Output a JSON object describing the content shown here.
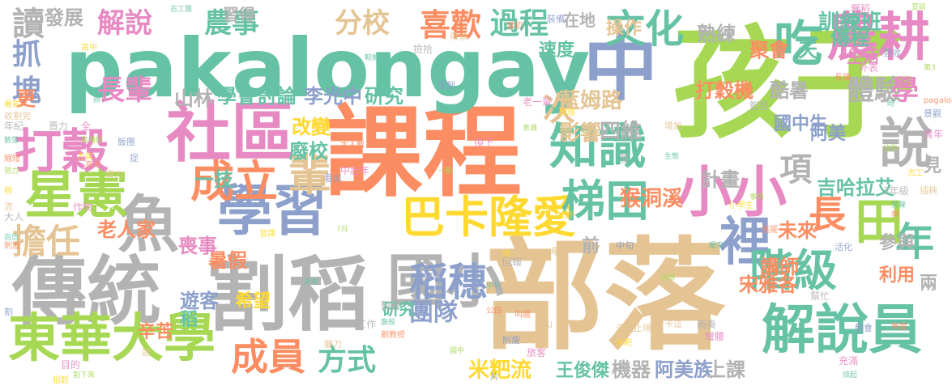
{
  "palette": {
    "green": "#66c2a5",
    "orange": "#fc8d62",
    "blue": "#8da0cb",
    "pink": "#e78ac3",
    "lime": "#a6d854",
    "yellow": "#ffd92f",
    "tan": "#e5c494",
    "gray": "#b3b3b3"
  },
  "words": [
    {
      "text": "課程",
      "color": "orange"
    },
    {
      "text": "部落",
      "color": "tan"
    },
    {
      "text": "孩子",
      "color": "lime"
    },
    {
      "text": "pakalongay",
      "color": "green"
    },
    {
      "text": "割稻",
      "color": "gray"
    },
    {
      "text": "傳統",
      "color": "gray"
    },
    {
      "text": "中",
      "color": "blue"
    },
    {
      "text": "社區",
      "color": "pink"
    },
    {
      "text": "學習",
      "color": "blue"
    },
    {
      "text": "魚",
      "color": "gray"
    },
    {
      "text": "東華大學",
      "color": "lime"
    },
    {
      "text": "國小",
      "color": "gray"
    },
    {
      "text": "星憲",
      "color": "lime"
    },
    {
      "text": "小小",
      "color": "pink"
    },
    {
      "text": "知識",
      "color": "green"
    },
    {
      "text": "巴卡隆愛",
      "color": "yellow"
    },
    {
      "text": "解說員",
      "color": "green"
    },
    {
      "text": "梯田",
      "color": "green"
    },
    {
      "text": "農耕",
      "color": "pink"
    },
    {
      "text": "裡",
      "color": "blue"
    },
    {
      "text": "稻穗",
      "color": "blue"
    },
    {
      "text": "文化",
      "color": "green"
    },
    {
      "text": "說",
      "color": "gray"
    },
    {
      "text": "打穀",
      "color": "pink"
    },
    {
      "text": "階級",
      "color": "green"
    },
    {
      "text": "成立",
      "color": "orange"
    },
    {
      "text": "輩",
      "color": "tan"
    },
    {
      "text": "吃",
      "color": "green"
    },
    {
      "text": "長",
      "color": "orange"
    },
    {
      "text": "田",
      "color": "lime"
    },
    {
      "text": "年",
      "color": "green"
    },
    {
      "text": "成員",
      "color": "orange"
    },
    {
      "text": "方式",
      "color": "green"
    },
    {
      "text": "擔任",
      "color": "tan"
    },
    {
      "text": "項",
      "color": "gray"
    },
    {
      "text": "喜歡",
      "color": "orange"
    },
    {
      "text": "過程",
      "color": "green"
    },
    {
      "text": "農事",
      "color": "green"
    },
    {
      "text": "分校",
      "color": "tan"
    },
    {
      "text": "解說",
      "color": "pink"
    },
    {
      "text": "長輩",
      "color": "pink"
    },
    {
      "text": "次",
      "color": "tan"
    },
    {
      "text": "體驗",
      "color": "gray"
    },
    {
      "text": "學",
      "color": "pink"
    },
    {
      "text": "團隊",
      "color": "blue"
    },
    {
      "text": "研究",
      "color": "green"
    },
    {
      "text": "讀",
      "color": "gray"
    },
    {
      "text": "抓",
      "color": "blue"
    },
    {
      "text": "塊",
      "color": "blue"
    },
    {
      "text": "影響",
      "color": "tan"
    },
    {
      "text": "四維",
      "color": "gray"
    },
    {
      "text": "學會",
      "color": "green"
    },
    {
      "text": "討論",
      "color": "green"
    },
    {
      "text": "李光中",
      "color": "blue"
    },
    {
      "text": "研究",
      "color": "green"
    },
    {
      "text": "藍姆路",
      "color": "tan"
    },
    {
      "text": "山林",
      "color": "gray"
    },
    {
      "text": "老人家",
      "color": "orange"
    },
    {
      "text": "打穀機",
      "color": "orange"
    },
    {
      "text": "國中生",
      "color": "blue"
    },
    {
      "text": "猴洞溪",
      "color": "orange"
    },
    {
      "text": "未來",
      "color": "orange"
    },
    {
      "text": "講師",
      "color": "orange"
    },
    {
      "text": "吉哈拉艾",
      "color": "green"
    },
    {
      "text": "宋雅各",
      "color": "orange"
    },
    {
      "text": "米粑流",
      "color": "yellow"
    },
    {
      "text": "王俊傑",
      "color": "green"
    },
    {
      "text": "機器",
      "color": "gray"
    },
    {
      "text": "阿美族",
      "color": "blue"
    },
    {
      "text": "上課",
      "color": "gray"
    },
    {
      "text": "聚會",
      "color": "orange"
    },
    {
      "text": "天",
      "color": "green"
    },
    {
      "text": "訓練班",
      "color": "green"
    },
    {
      "text": "熟練",
      "color": "gray"
    },
    {
      "text": "速度",
      "color": "green"
    },
    {
      "text": "習得",
      "color": "gray"
    },
    {
      "text": "發展",
      "color": "gray"
    },
    {
      "text": "在地",
      "color": "gray"
    },
    {
      "text": "傳程",
      "color": "green"
    },
    {
      "text": "生活",
      "color": "pink"
    },
    {
      "text": "酷暑",
      "color": "gray"
    },
    {
      "text": "操作",
      "color": "tan"
    },
    {
      "text": "計畫",
      "color": "gray"
    },
    {
      "text": "改變",
      "color": "yellow"
    },
    {
      "text": "廢校",
      "color": "green"
    },
    {
      "text": "一技",
      "color": "green"
    },
    {
      "text": "希望",
      "color": "yellow"
    },
    {
      "text": "暑假",
      "color": "orange"
    },
    {
      "text": "喪事",
      "color": "pink"
    },
    {
      "text": "遊客",
      "color": "blue"
    },
    {
      "text": "稻",
      "color": "green"
    },
    {
      "text": "前",
      "color": "gray"
    },
    {
      "text": "參與",
      "color": "gray"
    },
    {
      "text": "利用",
      "color": "orange"
    },
    {
      "text": "阿美",
      "color": "blue"
    },
    {
      "text": "兩",
      "color": "gray"
    },
    {
      "text": "見",
      "color": "gray"
    },
    {
      "text": "更",
      "color": "orange"
    },
    {
      "text": "辛苦",
      "color": "orange"
    }
  ],
  "small_words": [
    "志工團",
    "當初",
    "裝備",
    "曬稻",
    "宣談",
    "高中",
    "帶領",
    "撿拾",
    "較機",
    "長鑛",
    "豐收",
    "外表",
    "第3",
    "暑氣",
    "收割完",
    "年紀",
    "散落",
    "縮短",
    "飯團",
    "作物",
    "努力",
    "稍",
    "流",
    "大人",
    "自信",
    "刺激",
    "提到",
    "老一輩",
    "意識",
    "管理",
    "增加",
    "智慧",
    "時",
    "pagalongay",
    "景觀",
    "青年",
    "協助",
    "志工",
    "插秧",
    "3年級",
    "笑聲",
    "帶",
    "活化",
    "換下",
    "一整",
    "上午",
    "曬穀",
    "回報",
    "中午",
    "公田",
    "片",
    "目的",
    "割下來",
    "稻穀",
    "鐮刀",
    "工作",
    "采收",
    "大人數",
    "看似",
    "中壯年",
    "7月",
    "音譯",
    "語",
    "整",
    "生態",
    "叫醒",
    "削瘦",
    "旅客",
    "事情",
    "小學生",
    "卡這",
    "義奏",
    "曬完",
    "搖擺",
    "中旬",
    "彎腰",
    "消弭",
    "米粑",
    "永無止境",
    "幫忙",
    "撿起",
    "無蹤",
    "體會",
    "充滿",
    "國中",
    "拖",
    "梨山",
    "騎傲",
    "廟殺",
    "剷教授",
    "割",
    "全",
    "裝備好",
    "力氣",
    "資力",
    "賣力",
    "辦",
    "高中",
    "捉"
  ]
}
